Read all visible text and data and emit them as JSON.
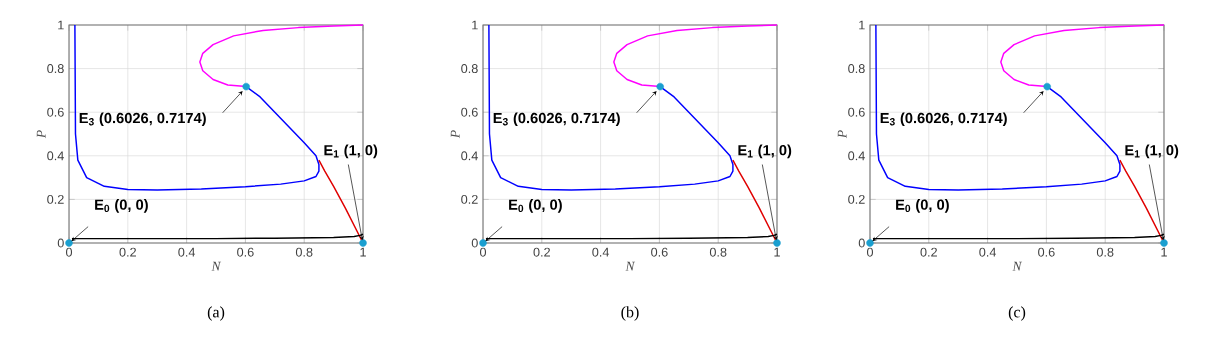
{
  "chart_data": [
    {
      "type": "line",
      "title": "(a)",
      "xlabel": "N",
      "ylabel": "P",
      "xlim": [
        0,
        1
      ],
      "ylim": [
        0,
        1
      ],
      "xticks": [
        0,
        0.2,
        0.4,
        0.6,
        0.8,
        1
      ],
      "yticks": [
        0,
        0.2,
        0.4,
        0.6,
        0.8,
        1
      ],
      "grid": true,
      "line_style": "solid",
      "series": [
        {
          "color": "#0000ff",
          "x": [
            0.02,
            0.022,
            0.03,
            0.06,
            0.12,
            0.2,
            0.3,
            0.45,
            0.6,
            0.72,
            0.8,
            0.84,
            0.85,
            0.85,
            0.84,
            0.8,
            0.75,
            0.7,
            0.65,
            0.6026
          ],
          "values": [
            1,
            0.5,
            0.38,
            0.3,
            0.26,
            0.245,
            0.243,
            0.248,
            0.258,
            0.27,
            0.285,
            0.305,
            0.33,
            0.36,
            0.4,
            0.46,
            0.53,
            0.6,
            0.67,
            0.7174
          ]
        },
        {
          "color": "#ff00ff",
          "x": [
            1,
            0.9,
            0.78,
            0.66,
            0.56,
            0.49,
            0.455,
            0.445,
            0.455,
            0.49,
            0.54,
            0.6026
          ],
          "values": [
            1,
            0.995,
            0.988,
            0.975,
            0.95,
            0.91,
            0.87,
            0.83,
            0.79,
            0.75,
            0.725,
            0.7174
          ]
        },
        {
          "color": "#e00000",
          "x": [
            1,
            0.97,
            0.94,
            0.9,
            0.87,
            0.85
          ],
          "values": [
            0,
            0.08,
            0.16,
            0.26,
            0.33,
            0.38
          ]
        },
        {
          "color": "#000000",
          "x": [
            0.01,
            0.1,
            0.3,
            0.5,
            0.7,
            0.9,
            0.97,
            0.99,
            1
          ],
          "values": [
            0.02,
            0.02,
            0.02,
            0.02,
            0.022,
            0.025,
            0.03,
            0.035,
            0.04
          ]
        },
        {
          "type": "scatter",
          "marker": "circle",
          "color": "#1a9fd0",
          "x": [
            0,
            1,
            0.6026
          ],
          "values": [
            0,
            0,
            0.7174
          ]
        }
      ],
      "annotations": [
        {
          "text": "E$_{0}$ (0, 0)",
          "x": 0,
          "y": 0
        },
        {
          "text": "E$_{1}$ (1, 0)",
          "x": 1,
          "y": 0
        },
        {
          "text": "E$_{3}$ (0.6026, 0.7174)",
          "x": 0.6026,
          "y": 0.7174
        }
      ]
    },
    {
      "type": "line",
      "title": "(b)",
      "xlabel": "N",
      "ylabel": "P",
      "xlim": [
        0,
        1
      ],
      "ylim": [
        0,
        1
      ],
      "xticks": [
        0,
        0.2,
        0.4,
        0.6,
        0.8,
        1
      ],
      "yticks": [
        0,
        0.2,
        0.4,
        0.6,
        0.8,
        1
      ],
      "grid": true,
      "line_style": "solid",
      "series": [
        {
          "color": "#0000ff",
          "x": [
            0.02,
            0.022,
            0.03,
            0.06,
            0.12,
            0.2,
            0.3,
            0.45,
            0.6,
            0.72,
            0.8,
            0.84,
            0.85,
            0.85,
            0.84,
            0.8,
            0.75,
            0.7,
            0.65,
            0.6026
          ],
          "values": [
            1,
            0.5,
            0.38,
            0.3,
            0.26,
            0.245,
            0.243,
            0.248,
            0.258,
            0.27,
            0.285,
            0.305,
            0.33,
            0.36,
            0.4,
            0.46,
            0.53,
            0.6,
            0.67,
            0.7174
          ]
        },
        {
          "color": "#ff00ff",
          "x": [
            1,
            0.9,
            0.78,
            0.66,
            0.56,
            0.49,
            0.455,
            0.445,
            0.455,
            0.49,
            0.54,
            0.6026
          ],
          "values": [
            1,
            0.995,
            0.988,
            0.975,
            0.95,
            0.91,
            0.87,
            0.83,
            0.79,
            0.75,
            0.725,
            0.7174
          ]
        },
        {
          "color": "#e00000",
          "x": [
            1,
            0.97,
            0.94,
            0.9,
            0.87,
            0.85
          ],
          "values": [
            0,
            0.08,
            0.16,
            0.26,
            0.33,
            0.38
          ]
        },
        {
          "color": "#000000",
          "x": [
            0.01,
            0.1,
            0.3,
            0.5,
            0.7,
            0.9,
            0.97,
            0.99,
            1
          ],
          "values": [
            0.02,
            0.02,
            0.02,
            0.02,
            0.022,
            0.025,
            0.03,
            0.035,
            0.04
          ]
        },
        {
          "type": "scatter",
          "marker": "circle",
          "color": "#1a9fd0",
          "x": [
            0,
            1,
            0.6026
          ],
          "values": [
            0,
            0,
            0.7174
          ]
        }
      ],
      "annotations": [
        {
          "text": "E$_{0}$ (0, 0)",
          "x": 0,
          "y": 0
        },
        {
          "text": "E$_{1}$ (1, 0)",
          "x": 1,
          "y": 0
        },
        {
          "text": "E$_{3}$ (0.6026, 0.7174)",
          "x": 0.6026,
          "y": 0.7174
        }
      ]
    },
    {
      "type": "line",
      "title": "(c)",
      "xlabel": "N",
      "ylabel": "P",
      "xlim": [
        0,
        1
      ],
      "ylim": [
        0,
        1
      ],
      "xticks": [
        0,
        0.2,
        0.4,
        0.6,
        0.8,
        1
      ],
      "yticks": [
        0,
        0.2,
        0.4,
        0.6,
        0.8,
        1
      ],
      "grid": true,
      "line_style": "solid",
      "series": [
        {
          "color": "#0000ff",
          "x": [
            0.02,
            0.022,
            0.03,
            0.06,
            0.12,
            0.2,
            0.3,
            0.45,
            0.6,
            0.72,
            0.8,
            0.84,
            0.85,
            0.85,
            0.84,
            0.8,
            0.75,
            0.7,
            0.65,
            0.6026
          ],
          "values": [
            1,
            0.5,
            0.38,
            0.3,
            0.26,
            0.245,
            0.243,
            0.248,
            0.258,
            0.27,
            0.285,
            0.305,
            0.33,
            0.36,
            0.4,
            0.46,
            0.53,
            0.6,
            0.67,
            0.7174
          ]
        },
        {
          "color": "#ff00ff",
          "x": [
            1,
            0.9,
            0.78,
            0.66,
            0.56,
            0.49,
            0.455,
            0.445,
            0.455,
            0.49,
            0.54,
            0.6026
          ],
          "values": [
            1,
            0.995,
            0.988,
            0.975,
            0.95,
            0.91,
            0.87,
            0.83,
            0.79,
            0.75,
            0.725,
            0.7174
          ]
        },
        {
          "color": "#e00000",
          "x": [
            1,
            0.97,
            0.94,
            0.9,
            0.87,
            0.85
          ],
          "values": [
            0,
            0.08,
            0.16,
            0.26,
            0.33,
            0.38
          ]
        },
        {
          "color": "#000000",
          "x": [
            0.01,
            0.1,
            0.3,
            0.5,
            0.7,
            0.9,
            0.97,
            0.99,
            1
          ],
          "values": [
            0.02,
            0.02,
            0.02,
            0.02,
            0.022,
            0.025,
            0.03,
            0.035,
            0.04
          ]
        },
        {
          "type": "scatter",
          "marker": "circle",
          "color": "#1a9fd0",
          "x": [
            0,
            1,
            0.6026
          ],
          "values": [
            0,
            0,
            0.7174
          ]
        }
      ],
      "annotations": [
        {
          "text": "E$_{0}$ (0, 0)",
          "x": 0,
          "y": 0
        },
        {
          "text": "E$_{1}$ (1, 0)",
          "x": 1,
          "y": 0
        },
        {
          "text": "E$_{3}$ (0.6026, 0.7174)",
          "x": 0.6026,
          "y": 0.7174
        }
      ]
    }
  ]
}
